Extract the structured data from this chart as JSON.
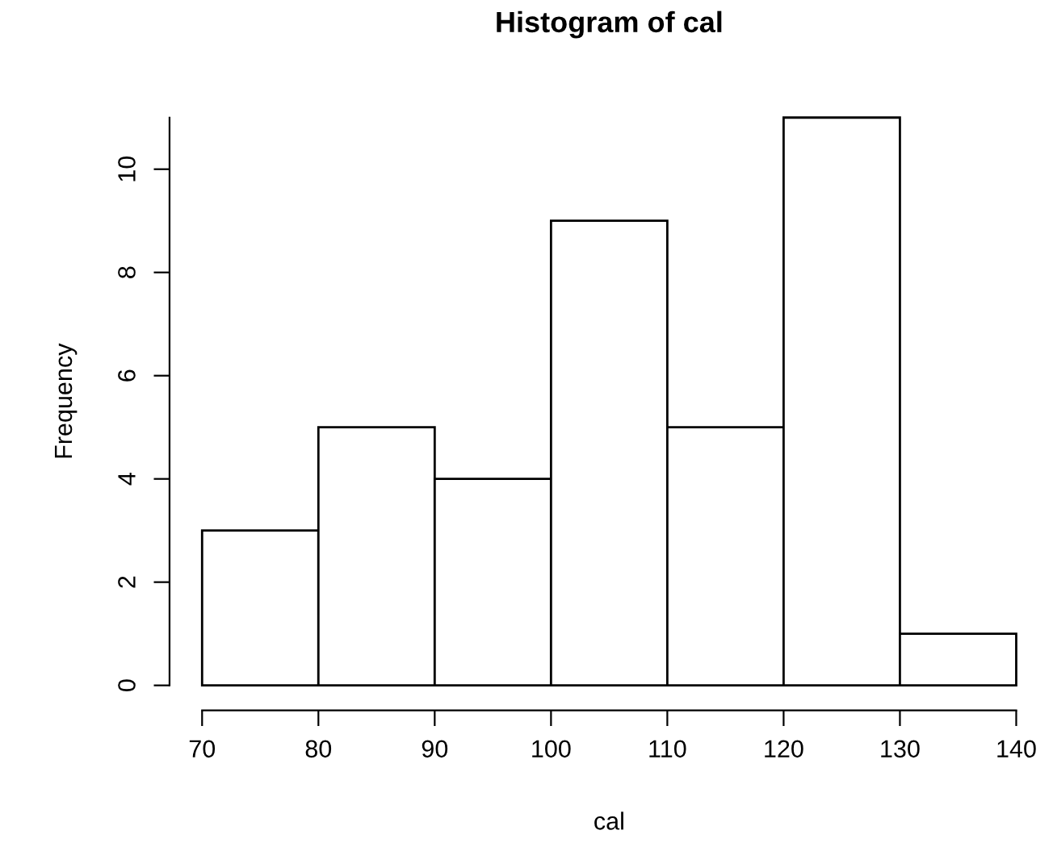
{
  "chart_data": {
    "type": "histogram",
    "title": "Histogram of cal",
    "xlabel": "cal",
    "ylabel": "Frequency",
    "bins": [
      70,
      80,
      90,
      100,
      110,
      120,
      130,
      140
    ],
    "values": [
      3,
      5,
      4,
      9,
      5,
      11,
      1
    ],
    "color": "#ffffff",
    "xlim": [
      70,
      140
    ],
    "ylim": [
      0,
      11
    ],
    "xticks": [
      70,
      80,
      90,
      100,
      110,
      120,
      130,
      140
    ],
    "yticks": [
      0,
      2,
      4,
      6,
      8,
      10
    ],
    "grid": false
  }
}
